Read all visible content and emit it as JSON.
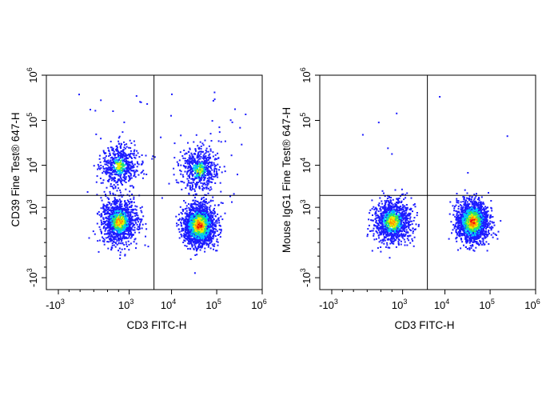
{
  "chart_data": [
    {
      "type": "scatter",
      "subtype": "flow-cytometry-pseudocolor-dot-plot",
      "xlabel": "CD3 FITC-H",
      "ylabel": "CD39 Fine Test® 647-H",
      "x_scale": "biexponential",
      "y_scale": "biexponential",
      "xlim": [
        -2000,
        1000000
      ],
      "ylim": [
        -2000,
        1000000
      ],
      "x_ticks": [
        "-10",
        "10",
        "10",
        "10",
        "10"
      ],
      "x_tick_exps": [
        "3",
        "3",
        "4",
        "5",
        "6"
      ],
      "y_ticks": [
        "-10",
        "10",
        "10",
        "10",
        "10"
      ],
      "y_tick_exps": [
        "3",
        "3",
        "4",
        "5",
        "6"
      ],
      "quadrant_gate": {
        "x": 4000,
        "y": 2000
      },
      "populations": [
        {
          "x_center": 500,
          "y_center": 10000,
          "density": "low"
        },
        {
          "x_center": 500,
          "y_center": 400,
          "density": "medium"
        },
        {
          "x_center": 40000,
          "y_center": 8000,
          "density": "low"
        },
        {
          "x_center": 40000,
          "y_center": 300,
          "density": "high"
        }
      ],
      "color_scale": [
        "#1c1cff",
        "#00c8ff",
        "#2ee65a",
        "#f0ee00",
        "#ff8a00",
        "#e8000f"
      ]
    },
    {
      "type": "scatter",
      "subtype": "flow-cytometry-pseudocolor-dot-plot",
      "xlabel": "CD3 FITC-H",
      "ylabel": "Mouse IgG1 Fine Test® 647-H",
      "x_scale": "biexponential",
      "y_scale": "biexponential",
      "xlim": [
        -2000,
        1000000
      ],
      "ylim": [
        -2000,
        1000000
      ],
      "x_ticks": [
        "-10",
        "10",
        "10",
        "10",
        "10"
      ],
      "x_tick_exps": [
        "3",
        "3",
        "4",
        "5",
        "6"
      ],
      "y_ticks": [
        "-10",
        "10",
        "10",
        "10",
        "10"
      ],
      "y_tick_exps": [
        "3",
        "3",
        "4",
        "5",
        "6"
      ],
      "quadrant_gate": {
        "x": 4000,
        "y": 2000
      },
      "populations": [
        {
          "x_center": 500,
          "y_center": 400,
          "density": "medium"
        },
        {
          "x_center": 40000,
          "y_center": 400,
          "density": "high"
        }
      ],
      "color_scale": [
        "#1c1cff",
        "#00c8ff",
        "#2ee65a",
        "#f0ee00",
        "#ff8a00",
        "#e8000f"
      ]
    }
  ]
}
